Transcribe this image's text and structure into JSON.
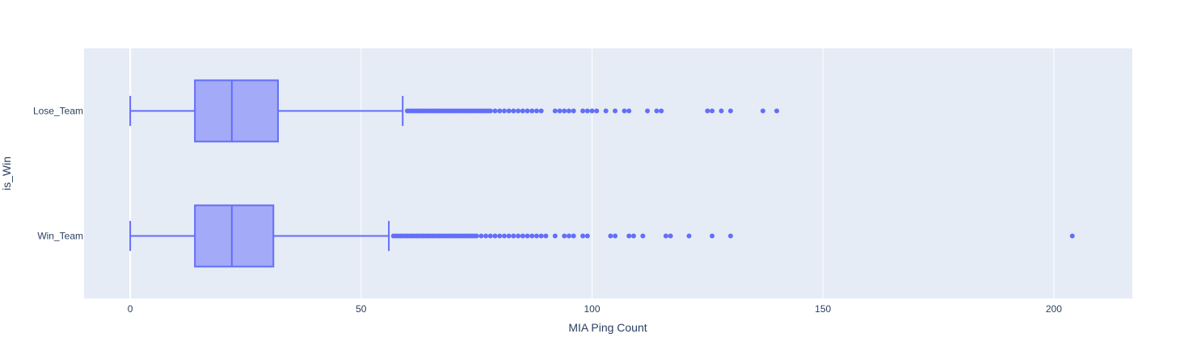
{
  "chart_data": {
    "type": "box",
    "orientation": "horizontal",
    "xlabel": "MIA Ping Count",
    "ylabel": "is_Win",
    "xlim": [
      -10,
      217
    ],
    "x_ticks": [
      0,
      50,
      100,
      150,
      200
    ],
    "categories": [
      "Lose_Team",
      "Win_Team"
    ],
    "grid": true,
    "legend": "none",
    "colors": {
      "plot_bg": "#e5ecf6",
      "grid": "#ffffff",
      "box_line": "#636efa",
      "box_fill": "#a3aaf7",
      "marker": "#636efa",
      "text": "#2a3f5f"
    },
    "series": [
      {
        "category": "Lose_Team",
        "min": 0,
        "q1": 14,
        "median": 22,
        "q3": 32,
        "upper_fence": 59,
        "outliers": [
          60,
          60.5,
          61,
          61.5,
          62,
          62.5,
          63,
          63.5,
          64,
          64.5,
          65,
          65.5,
          66,
          66.5,
          67,
          67.5,
          68,
          68.5,
          69,
          69.5,
          70,
          70.5,
          71,
          71.5,
          72,
          72.5,
          73,
          73.5,
          74,
          74.5,
          75,
          75.5,
          76,
          76.5,
          77,
          77.5,
          78,
          79,
          80,
          81,
          82,
          83,
          84,
          85,
          86,
          87,
          88,
          89,
          92,
          93,
          94,
          95,
          96,
          98,
          99,
          100,
          101,
          103,
          105,
          107,
          108,
          112,
          114,
          115,
          125,
          126,
          128,
          130,
          137,
          140
        ]
      },
      {
        "category": "Win_Team",
        "min": 0,
        "q1": 14,
        "median": 22,
        "q3": 31,
        "upper_fence": 56,
        "outliers": [
          57,
          57.5,
          58,
          58.5,
          59,
          59.5,
          60,
          60.5,
          61,
          61.5,
          62,
          62.5,
          63,
          63.5,
          64,
          64.5,
          65,
          65.5,
          66,
          66.5,
          67,
          67.5,
          68,
          68.5,
          69,
          69.5,
          70,
          70.5,
          71,
          71.5,
          72,
          72.5,
          73,
          73.5,
          74,
          74.5,
          75,
          76,
          77,
          78,
          79,
          80,
          81,
          82,
          83,
          84,
          85,
          86,
          87,
          88,
          89,
          90,
          92,
          94,
          95,
          96,
          98,
          99,
          104,
          105,
          108,
          109,
          111,
          116,
          117,
          121,
          126,
          130,
          204
        ]
      }
    ]
  }
}
